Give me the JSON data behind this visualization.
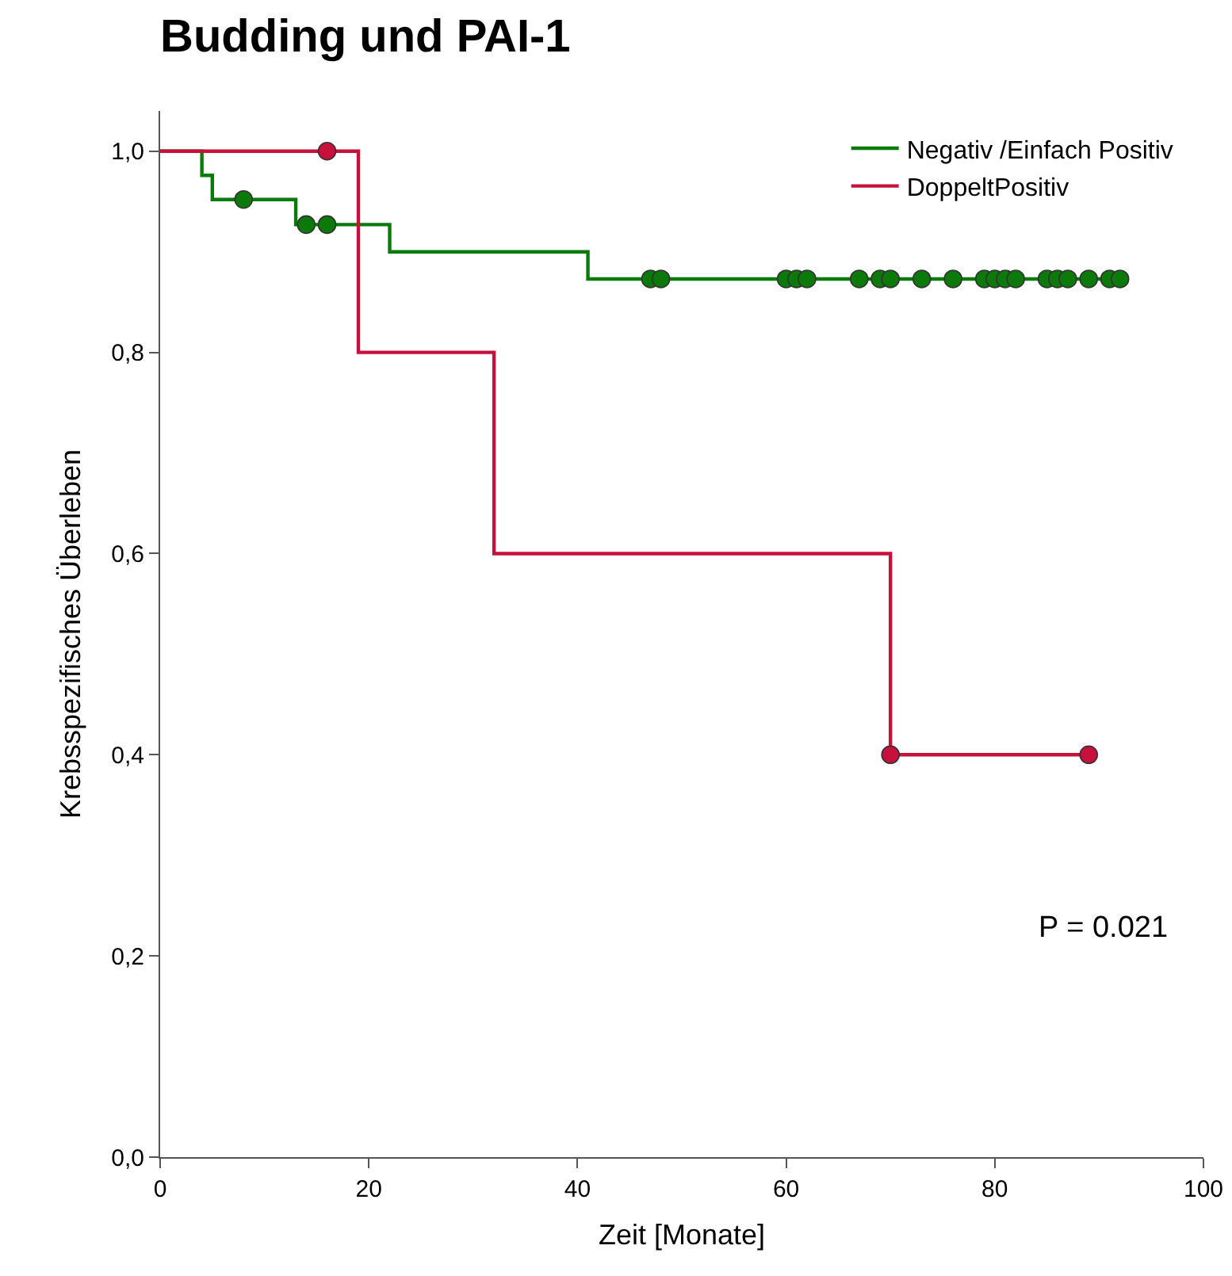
{
  "chart_data": {
    "type": "step",
    "title": "Budding und PAI-1",
    "xlabel": "Zeit [Monate]",
    "ylabel": "Krebsspezifisches Überleben",
    "xlim": [
      0,
      100
    ],
    "xticks": [
      0,
      20,
      40,
      60,
      80,
      100
    ],
    "ylim": [
      0,
      1.04
    ],
    "yticks": [
      {
        "value": 0,
        "label": "0,0"
      },
      {
        "value": 0.2,
        "label": "0,2"
      },
      {
        "value": 0.4,
        "label": "0,4"
      },
      {
        "value": 0.6,
        "label": "0,6"
      },
      {
        "value": 0.8,
        "label": "0,8"
      },
      {
        "value": 1,
        "label": "1,0"
      }
    ],
    "grid": false,
    "legend": "top right",
    "annotations": [
      "P = 0.021"
    ],
    "series": [
      {
        "name": "Negativ /Einfach Positiv",
        "type": "step",
        "marker": "none",
        "color": "#0b7a0b",
        "x": [
          0,
          4,
          5,
          13,
          22,
          41,
          92
        ],
        "values": [
          1,
          0.976,
          0.952,
          0.927,
          0.9,
          0.873,
          0.873
        ]
      },
      {
        "name": "DoppeltPositiv",
        "type": "step",
        "marker": "none",
        "color": "#c8103c",
        "x": [
          0,
          19,
          32,
          70,
          89
        ],
        "values": [
          1,
          0.8,
          0.6,
          0.4,
          0.4
        ]
      },
      {
        "type": "scatter",
        "marker": "circle",
        "color": "#0b7a0b",
        "x": [
          8,
          14,
          16,
          47,
          48,
          60,
          61,
          62,
          67,
          69,
          70,
          73,
          76,
          79,
          80,
          81,
          82,
          85,
          86,
          87,
          89,
          91,
          92
        ],
        "values": [
          0.952,
          0.927,
          0.927,
          0.873,
          0.873,
          0.873,
          0.873,
          0.873,
          0.873,
          0.873,
          0.873,
          0.873,
          0.873,
          0.873,
          0.873,
          0.873,
          0.873,
          0.873,
          0.873,
          0.873,
          0.873,
          0.873,
          0.873
        ]
      },
      {
        "type": "scatter",
        "marker": "circle",
        "color": "#c8103c",
        "x": [
          16,
          70,
          89
        ],
        "values": [
          1,
          0.4,
          0.4
        ]
      }
    ]
  }
}
